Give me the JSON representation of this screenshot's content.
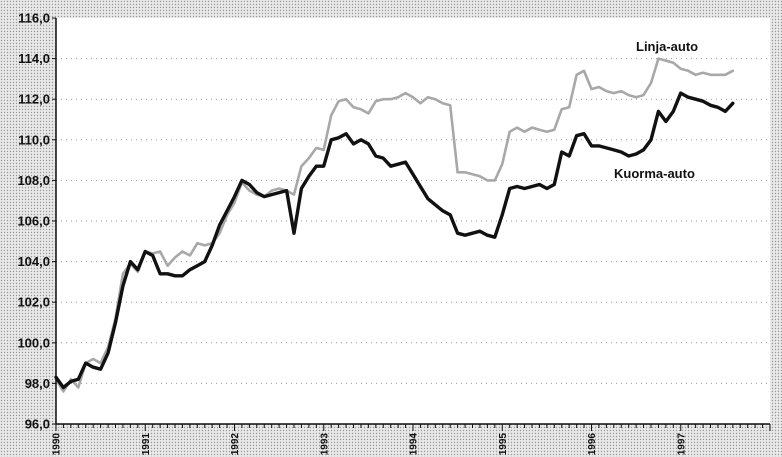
{
  "chart_data": {
    "type": "line",
    "title": "",
    "xlabel": "",
    "ylabel": "",
    "x_start": 1990.0,
    "x_step": 0.08333,
    "xlim": [
      1990.0,
      1998.0
    ],
    "ylim": [
      96.0,
      116.0
    ],
    "y_ticks": [
      "96,0",
      "98,0",
      "100,0",
      "102,0",
      "104,0",
      "106,0",
      "108,0",
      "110,0",
      "112,0",
      "114,0",
      "116,0"
    ],
    "x_tick_labels": [
      {
        "value": 1990,
        "label": "1990"
      },
      {
        "value": 1991,
        "label": "1991"
      },
      {
        "value": 1992,
        "label": "1992"
      },
      {
        "value": 1993,
        "label": "1993"
      },
      {
        "value": 1994,
        "label": "1994"
      },
      {
        "value": 1995,
        "label": "1995"
      },
      {
        "value": 1996,
        "label": "1996"
      },
      {
        "value": 1997,
        "label": "1997"
      }
    ],
    "grid": "horizontal-dotted",
    "series": [
      {
        "name": "Linja-auto",
        "color": "#a8a8a8",
        "values": [
          98.2,
          97.6,
          98.2,
          97.8,
          99.0,
          99.2,
          99.0,
          99.8,
          101.2,
          103.4,
          103.9,
          103.5,
          104.5,
          104.4,
          104.5,
          103.8,
          104.2,
          104.5,
          104.3,
          104.9,
          104.8,
          104.9,
          105.4,
          106.3,
          106.9,
          107.9,
          107.5,
          107.3,
          107.2,
          107.5,
          107.6,
          107.5,
          107.3,
          108.7,
          109.1,
          109.6,
          109.5,
          111.2,
          111.9,
          112.0,
          111.6,
          111.5,
          111.3,
          111.9,
          112.0,
          112.0,
          112.1,
          112.3,
          112.1,
          111.8,
          112.1,
          112.0,
          111.8,
          111.7,
          108.4,
          108.4,
          108.3,
          108.2,
          108.0,
          108.0,
          108.8,
          110.4,
          110.6,
          110.4,
          110.6,
          110.5,
          110.4,
          110.5,
          111.5,
          111.6,
          113.2,
          113.4,
          112.5,
          112.6,
          112.4,
          112.3,
          112.4,
          112.2,
          112.1,
          112.2,
          112.8,
          114.0,
          113.9,
          113.8,
          113.5,
          113.4,
          113.2,
          113.3,
          113.2,
          113.2,
          113.2,
          113.4
        ]
      },
      {
        "name": "Kuorma-auto",
        "color": "#111111",
        "values": [
          98.3,
          97.8,
          98.1,
          98.2,
          99.0,
          98.8,
          98.7,
          99.5,
          101.0,
          102.8,
          104.0,
          103.6,
          104.5,
          104.3,
          103.4,
          103.4,
          103.3,
          103.3,
          103.6,
          103.8,
          104.0,
          104.8,
          105.8,
          106.5,
          107.2,
          108.0,
          107.8,
          107.4,
          107.2,
          107.3,
          107.4,
          107.5,
          105.4,
          107.6,
          108.2,
          108.7,
          108.7,
          110.0,
          110.1,
          110.3,
          109.8,
          110.0,
          109.8,
          109.2,
          109.1,
          108.7,
          108.8,
          108.9,
          108.3,
          107.7,
          107.1,
          106.8,
          106.5,
          106.3,
          105.4,
          105.3,
          105.4,
          105.5,
          105.3,
          105.2,
          106.3,
          107.6,
          107.7,
          107.6,
          107.7,
          107.8,
          107.6,
          107.8,
          109.4,
          109.2,
          110.2,
          110.3,
          109.7,
          109.7,
          109.6,
          109.5,
          109.4,
          109.2,
          109.3,
          109.5,
          110.0,
          111.4,
          110.9,
          111.4,
          112.3,
          112.1,
          112.0,
          111.9,
          111.7,
          111.6,
          111.4,
          111.8
        ]
      }
    ]
  }
}
